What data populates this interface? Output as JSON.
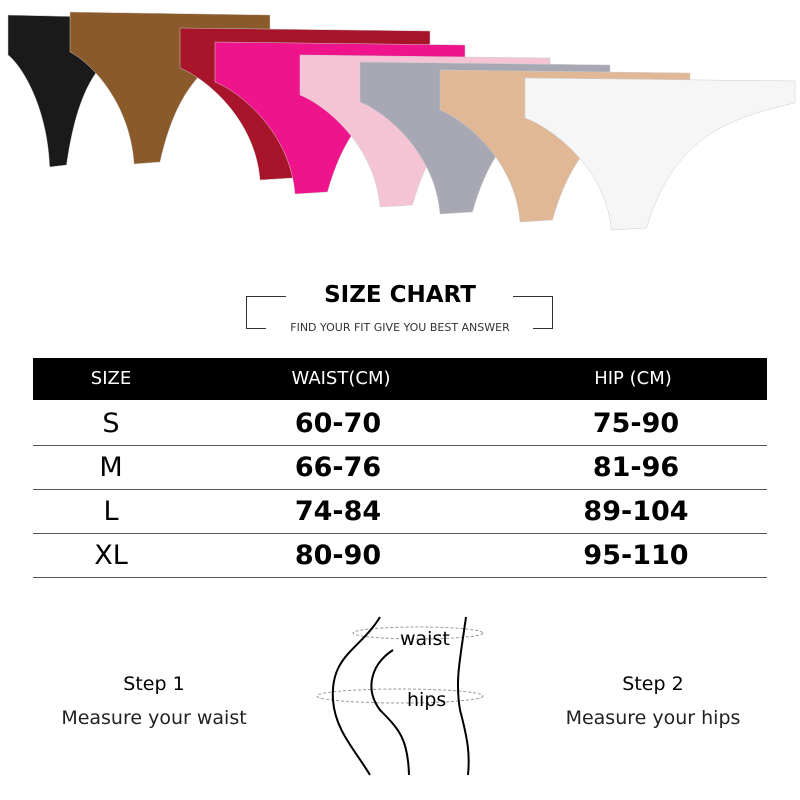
{
  "product_colors": [
    "#1a1a1a",
    "#8a5a2a",
    "#a8142a",
    "#f0148c",
    "#f4c4d4",
    "#a8a8b4",
    "#e0b896",
    "#f6f6f6"
  ],
  "header": {
    "title": "SIZE CHART",
    "subtitle": "FIND YOUR FIT GIVE YOU BEST ANSWER"
  },
  "table": {
    "columns": [
      "SIZE",
      "WAIST(CM)",
      "HIP (CM)"
    ],
    "rows": [
      {
        "size": "S",
        "waist": "60-70",
        "hip": "75-90"
      },
      {
        "size": "M",
        "waist": "66-76",
        "hip": "81-96"
      },
      {
        "size": "L",
        "waist": "74-84",
        "hip": "89-104"
      },
      {
        "size": "XL",
        "waist": "80-90",
        "hip": "95-110"
      }
    ]
  },
  "diagram": {
    "waist_label": "waist",
    "hips_label": "hips"
  },
  "steps": [
    {
      "title": "Step 1",
      "desc": "Measure your waist"
    },
    {
      "title": "Step 2",
      "desc": "Measure your hips"
    }
  ]
}
